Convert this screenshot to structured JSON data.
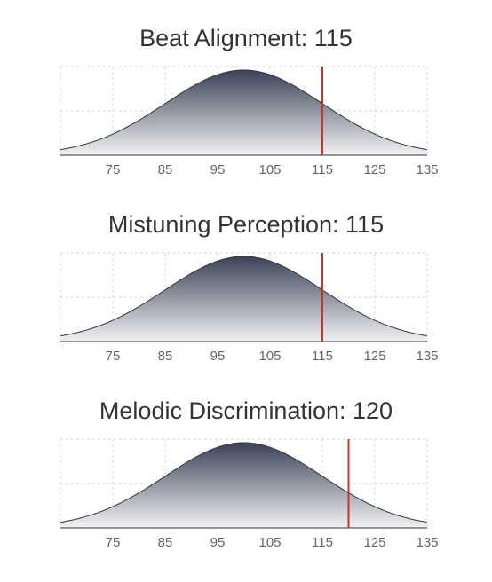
{
  "chart_data": [
    {
      "type": "area",
      "title": "Beat Alignment: 115",
      "x_ticks": [
        75,
        85,
        95,
        105,
        115,
        125,
        135
      ],
      "xlim": [
        65,
        135
      ],
      "distribution": {
        "kind": "normal",
        "mean": 100,
        "sd": 15
      },
      "marker": {
        "value": 115,
        "color": "#c0392b"
      },
      "grid": true,
      "fill_top_color": "#3b4256",
      "fill_bottom_color": "#f2f2f4"
    },
    {
      "type": "area",
      "title": "Mistuning Perception: 115",
      "x_ticks": [
        75,
        85,
        95,
        105,
        115,
        125,
        135
      ],
      "xlim": [
        65,
        135
      ],
      "distribution": {
        "kind": "normal",
        "mean": 100,
        "sd": 15
      },
      "marker": {
        "value": 115,
        "color": "#c0392b"
      },
      "grid": true,
      "fill_top_color": "#3b4256",
      "fill_bottom_color": "#f2f2f4"
    },
    {
      "type": "area",
      "title": "Melodic Discrimination: 120",
      "x_ticks": [
        75,
        85,
        95,
        105,
        115,
        125,
        135
      ],
      "xlim": [
        65,
        135
      ],
      "distribution": {
        "kind": "normal",
        "mean": 100,
        "sd": 15
      },
      "marker": {
        "value": 120,
        "color": "#c0392b"
      },
      "grid": true,
      "fill_top_color": "#3b4256",
      "fill_bottom_color": "#f2f2f4"
    }
  ]
}
